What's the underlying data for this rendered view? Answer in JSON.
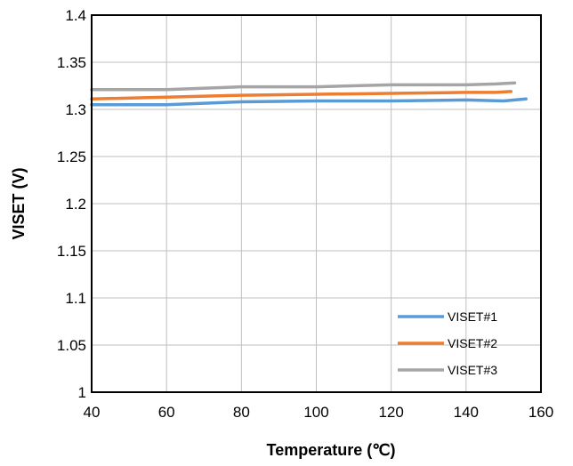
{
  "chart_data": {
    "type": "line",
    "title": "",
    "xlabel": "Temperature (℃)",
    "ylabel": "VISET (V)",
    "xlim": [
      40,
      160
    ],
    "ylim": [
      1,
      1.4
    ],
    "x_ticks": [
      "40",
      "60",
      "80",
      "100",
      "120",
      "140",
      "160"
    ],
    "y_ticks": [
      "1",
      "1.05",
      "1.1",
      "1.15",
      "1.2",
      "1.25",
      "1.3",
      "1.35",
      "1.4"
    ],
    "grid": true,
    "legend_position": "bottom-right",
    "series": [
      {
        "name": "VISET#1",
        "color": "#5B9BD5",
        "points": [
          [
            40,
            1.305
          ],
          [
            60,
            1.305
          ],
          [
            80,
            1.308
          ],
          [
            100,
            1.309
          ],
          [
            120,
            1.309
          ],
          [
            140,
            1.31
          ],
          [
            150,
            1.309
          ],
          [
            156,
            1.311
          ]
        ]
      },
      {
        "name": "VISET#2",
        "color": "#ED7D31",
        "points": [
          [
            40,
            1.311
          ],
          [
            60,
            1.313
          ],
          [
            80,
            1.315
          ],
          [
            100,
            1.316
          ],
          [
            120,
            1.317
          ],
          [
            140,
            1.318
          ],
          [
            148,
            1.318
          ],
          [
            152,
            1.319
          ]
        ]
      },
      {
        "name": "VISET#3",
        "color": "#A5A5A5",
        "points": [
          [
            40,
            1.321
          ],
          [
            60,
            1.321
          ],
          [
            80,
            1.324
          ],
          [
            100,
            1.324
          ],
          [
            120,
            1.326
          ],
          [
            140,
            1.326
          ],
          [
            148,
            1.327
          ],
          [
            153,
            1.328
          ]
        ]
      }
    ]
  }
}
